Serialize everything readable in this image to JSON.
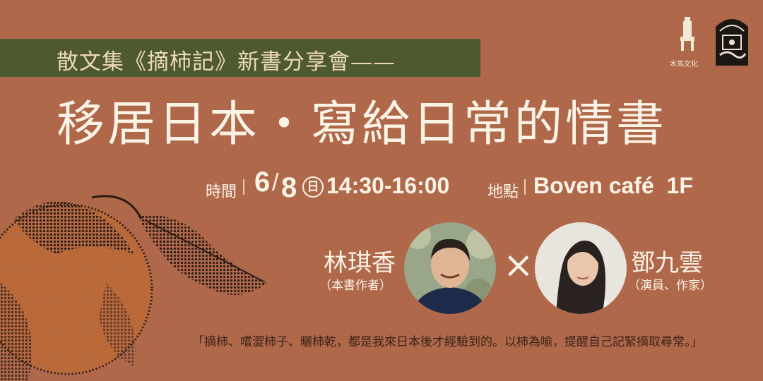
{
  "banner": {
    "text": "散文集《摘柿記》新書分享會——"
  },
  "title": "移居日本・寫給日常的情書",
  "event": {
    "time_label": "時間",
    "month": "6",
    "slash": "/",
    "day": "8",
    "weekday": "日",
    "time": "14:30-16:00",
    "place_label": "地點",
    "place": "Boven café  1F"
  },
  "speakers": [
    {
      "name": "林琪香",
      "role": "（本書作者）"
    },
    {
      "name": "鄧九雲",
      "role": "（演員、作家）"
    }
  ],
  "cross": "×",
  "quote": "「摘柿、嚐澀柿子、曬柿乾，都是我來日本後才經驗到的。以柿為喻，提醒自己記緊摘取尋常。」",
  "publisher": {
    "logo_text": "木馬文化"
  },
  "colors": {
    "background": "#b0684a",
    "banner": "#4e5930",
    "text": "#fbf3e6",
    "banner_text": "#ecd9b7"
  }
}
